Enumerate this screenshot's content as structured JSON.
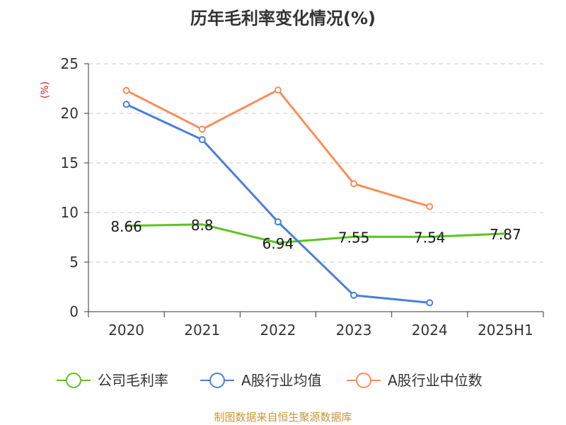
{
  "chart_data": {
    "type": "line",
    "title": "历年毛利率变化情况(%)",
    "ylabel": "(%)",
    "xlabel": "",
    "categories": [
      "2020",
      "2021",
      "2022",
      "2023",
      "2024",
      "2025H1"
    ],
    "ylim": [
      0,
      25
    ],
    "yticks": [
      0,
      5,
      10,
      15,
      20,
      25
    ],
    "grid": true,
    "legend_position": "bottom",
    "series": [
      {
        "name": "公司毛利率",
        "color": "#5bc41f",
        "values": [
          8.66,
          8.8,
          6.94,
          7.55,
          7.54,
          7.87
        ],
        "labels": [
          "8.66",
          "8.8",
          "6.94",
          "7.55",
          "7.54",
          "7.87"
        ],
        "show_markers": false
      },
      {
        "name": "A股行业均值",
        "color": "#4a7fd9",
        "values": [
          20.9,
          17.35,
          9.05,
          1.65,
          0.9,
          null
        ],
        "show_markers": true
      },
      {
        "name": "A股行业中位数",
        "color": "#f98d5a",
        "values": [
          22.3,
          18.4,
          22.35,
          12.9,
          10.6,
          null
        ],
        "show_markers": true
      }
    ]
  },
  "footer": {
    "source": "制图数据来自恒生聚源数据库"
  }
}
